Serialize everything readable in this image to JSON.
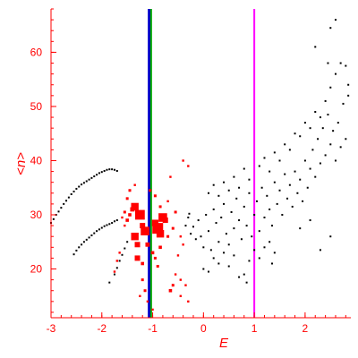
{
  "chart_data": {
    "type": "scatter",
    "title": "",
    "xlabel": "E",
    "ylabel": "<n>",
    "xlim": [
      -3,
      2.9
    ],
    "ylim": [
      11,
      68
    ],
    "x_ticks": [
      "-3",
      "-2",
      "-1",
      "0",
      "1",
      "2"
    ],
    "y_ticks": [
      "20",
      "30",
      "40",
      "50",
      "60"
    ],
    "grid": false,
    "legend": "none",
    "colors": {
      "axes": "#ff0000",
      "black_points": "#000000",
      "red_points": "#ff0000",
      "vline_blue": "#0000cc",
      "vline_green": "#00aa00",
      "vline_magenta": "#ff00ff"
    },
    "vertical_lines": [
      {
        "x": -1.06,
        "color": "#0000cc"
      },
      {
        "x": -1.03,
        "color": "#00aa00"
      },
      {
        "x": 1.0,
        "color": "#ff00ff"
      }
    ],
    "series": [
      {
        "marker": "small-dot",
        "color": "#000000",
        "points": [
          [
            -3.0,
            28.5
          ],
          [
            -2.95,
            29.2
          ],
          [
            -2.9,
            30.0
          ],
          [
            -2.85,
            30.6
          ],
          [
            -2.8,
            31.3
          ],
          [
            -2.75,
            32.0
          ],
          [
            -2.7,
            32.6
          ],
          [
            -2.65,
            33.2
          ],
          [
            -2.6,
            33.8
          ],
          [
            -2.55,
            34.3
          ],
          [
            -2.5,
            34.8
          ],
          [
            -2.45,
            35.2
          ],
          [
            -2.4,
            35.6
          ],
          [
            -2.35,
            35.9
          ],
          [
            -2.3,
            36.2
          ],
          [
            -2.25,
            36.5
          ],
          [
            -2.2,
            36.8
          ],
          [
            -2.15,
            37.1
          ],
          [
            -2.1,
            37.4
          ],
          [
            -2.05,
            37.7
          ],
          [
            -2.0,
            37.9
          ],
          [
            -1.95,
            38.1
          ],
          [
            -1.9,
            38.3
          ],
          [
            -1.85,
            38.4
          ],
          [
            -1.8,
            38.4
          ],
          [
            -1.75,
            38.3
          ],
          [
            -1.7,
            38.1
          ],
          [
            -2.55,
            22.7
          ],
          [
            -2.5,
            23.4
          ],
          [
            -2.45,
            24.0
          ],
          [
            -2.4,
            24.5
          ],
          [
            -2.35,
            25.0
          ],
          [
            -2.3,
            25.4
          ],
          [
            -2.25,
            25.8
          ],
          [
            -2.2,
            26.2
          ],
          [
            -2.15,
            26.6
          ],
          [
            -2.1,
            27.0
          ],
          [
            -2.05,
            27.3
          ],
          [
            -2.0,
            27.6
          ],
          [
            -1.95,
            27.9
          ],
          [
            -1.9,
            28.1
          ],
          [
            -1.85,
            28.3
          ],
          [
            -1.8,
            28.5
          ],
          [
            -1.75,
            28.8
          ],
          [
            -1.7,
            29.0
          ],
          [
            -1.85,
            17.5
          ],
          [
            -1.75,
            19.0
          ],
          [
            -1.7,
            20.2
          ],
          [
            -1.65,
            21.5
          ],
          [
            -1.6,
            22.6
          ],
          [
            -1.55,
            23.8
          ],
          [
            -1.5,
            25.0
          ],
          [
            -0.35,
            28.0
          ],
          [
            -0.3,
            29.5
          ],
          [
            -0.28,
            30.2
          ],
          [
            -0.25,
            26.5
          ],
          [
            -0.2,
            27.8
          ],
          [
            -0.15,
            25.5
          ],
          [
            -0.1,
            29.0
          ],
          [
            -0.05,
            26.0
          ],
          [
            0.0,
            24.0
          ],
          [
            0.05,
            30.0
          ],
          [
            0.1,
            27.0
          ],
          [
            0.15,
            23.5
          ],
          [
            0.2,
            31.0
          ],
          [
            0.25,
            28.5
          ],
          [
            0.3,
            25.0
          ],
          [
            0.35,
            29.5
          ],
          [
            0.4,
            32.0
          ],
          [
            0.45,
            26.5
          ],
          [
            0.5,
            24.5
          ],
          [
            0.55,
            30.5
          ],
          [
            0.6,
            27.5
          ],
          [
            0.65,
            33.0
          ],
          [
            0.7,
            29.0
          ],
          [
            0.75,
            25.5
          ],
          [
            0.8,
            31.5
          ],
          [
            0.85,
            28.0
          ],
          [
            0.9,
            34.0
          ],
          [
            0.95,
            26.0
          ],
          [
            1.0,
            30.0
          ],
          [
            1.05,
            32.5
          ],
          [
            1.1,
            27.0
          ],
          [
            1.15,
            35.0
          ],
          [
            1.2,
            29.5
          ],
          [
            1.25,
            33.5
          ],
          [
            1.3,
            31.0
          ],
          [
            1.35,
            28.0
          ],
          [
            1.4,
            36.0
          ],
          [
            1.45,
            32.0
          ],
          [
            1.5,
            34.5
          ],
          [
            1.55,
            30.0
          ],
          [
            1.6,
            37.5
          ],
          [
            1.65,
            33.0
          ],
          [
            1.7,
            35.5
          ],
          [
            1.75,
            31.5
          ],
          [
            1.8,
            38.0
          ],
          [
            1.85,
            34.0
          ],
          [
            1.9,
            36.5
          ],
          [
            1.95,
            32.5
          ],
          [
            2.0,
            40.0
          ],
          [
            2.05,
            35.0
          ],
          [
            2.1,
            38.5
          ],
          [
            2.15,
            42.0
          ],
          [
            2.2,
            37.0
          ],
          [
            2.25,
            44.0
          ],
          [
            2.3,
            39.5
          ],
          [
            2.35,
            46.0
          ],
          [
            2.4,
            41.0
          ],
          [
            2.45,
            48.5
          ],
          [
            2.5,
            43.0
          ],
          [
            2.55,
            45.5
          ],
          [
            2.6,
            40.0
          ],
          [
            2.65,
            47.0
          ],
          [
            2.7,
            42.5
          ],
          [
            2.75,
            50.5
          ],
          [
            2.8,
            44.0
          ],
          [
            2.85,
            52.0
          ],
          [
            0.0,
            20.0
          ],
          [
            0.1,
            19.5
          ],
          [
            0.2,
            22.0
          ],
          [
            0.3,
            21.0
          ],
          [
            0.4,
            23.0
          ],
          [
            0.5,
            20.5
          ],
          [
            0.6,
            22.5
          ],
          [
            0.7,
            18.5
          ],
          [
            0.8,
            19.0
          ],
          [
            0.9,
            21.5
          ],
          [
            1.0,
            23.5
          ],
          [
            1.1,
            22.0
          ],
          [
            1.2,
            24.0
          ],
          [
            1.3,
            25.0
          ],
          [
            1.4,
            23.0
          ],
          [
            0.1,
            34.0
          ],
          [
            0.2,
            35.5
          ],
          [
            0.3,
            33.5
          ],
          [
            0.4,
            36.0
          ],
          [
            0.5,
            34.5
          ],
          [
            0.6,
            37.0
          ],
          [
            0.7,
            35.0
          ],
          [
            0.8,
            38.5
          ],
          [
            0.9,
            36.5
          ],
          [
            1.1,
            39.0
          ],
          [
            1.2,
            40.5
          ],
          [
            1.3,
            38.0
          ],
          [
            1.4,
            41.5
          ],
          [
            1.5,
            40.0
          ],
          [
            1.6,
            43.0
          ],
          [
            1.7,
            42.0
          ],
          [
            1.8,
            45.0
          ],
          [
            1.9,
            44.5
          ],
          [
            2.0,
            47.0
          ],
          [
            2.1,
            46.0
          ],
          [
            2.2,
            49.0
          ],
          [
            2.3,
            48.0
          ],
          [
            2.4,
            51.0
          ],
          [
            2.5,
            53.5
          ],
          [
            2.6,
            56.0
          ],
          [
            2.7,
            58.0
          ],
          [
            2.8,
            57.5
          ],
          [
            2.85,
            54.0
          ],
          [
            2.5,
            64.5
          ],
          [
            2.6,
            66.0
          ],
          [
            2.45,
            58.0
          ],
          [
            2.2,
            61.0
          ],
          [
            2.3,
            23.5
          ],
          [
            2.5,
            26.0
          ],
          [
            0.85,
            17.5
          ],
          [
            1.35,
            21.0
          ],
          [
            1.9,
            27.5
          ],
          [
            2.1,
            29.0
          ]
        ]
      },
      {
        "marker": "red-square",
        "color": "#ff0000",
        "points": [
          [
            -1.35,
            31.5,
            14
          ],
          [
            -1.25,
            30.0,
            18
          ],
          [
            -1.2,
            28.0,
            10
          ],
          [
            -1.15,
            27.0,
            16
          ],
          [
            -0.95,
            28.5,
            12
          ],
          [
            -0.9,
            27.5,
            20
          ],
          [
            -0.85,
            26.5,
            14
          ],
          [
            -0.8,
            29.5,
            16
          ],
          [
            -0.75,
            29.0,
            10
          ],
          [
            -1.4,
            31.0,
            8
          ],
          [
            -1.45,
            30.0,
            6
          ],
          [
            -1.5,
            29.0,
            6
          ],
          [
            -1.55,
            30.5,
            5
          ],
          [
            -1.6,
            29.5,
            4
          ],
          [
            -1.5,
            33.0,
            5
          ],
          [
            -1.45,
            34.5,
            5
          ],
          [
            -1.35,
            35.5,
            4
          ],
          [
            -1.3,
            24.5,
            10
          ],
          [
            -1.35,
            26.0,
            14
          ],
          [
            -1.3,
            22.0,
            10
          ],
          [
            -1.2,
            21.0,
            6
          ],
          [
            -1.1,
            24.5,
            8
          ],
          [
            -1.0,
            23.0,
            6
          ],
          [
            -0.95,
            22.0,
            5
          ],
          [
            -0.9,
            20.5,
            5
          ],
          [
            -0.85,
            24.0,
            6
          ],
          [
            -0.7,
            26.0,
            5
          ],
          [
            -0.6,
            27.5,
            5
          ],
          [
            -0.55,
            30.5,
            5
          ],
          [
            -0.45,
            26.0,
            4
          ],
          [
            -0.4,
            24.5,
            4
          ],
          [
            -0.5,
            22.5,
            4
          ],
          [
            -0.55,
            19.0,
            4
          ],
          [
            -0.6,
            17.0,
            5
          ],
          [
            -0.65,
            16.0,
            6
          ],
          [
            -0.45,
            18.0,
            4
          ],
          [
            -0.35,
            17.0,
            4
          ],
          [
            -0.45,
            15.0,
            4
          ],
          [
            -0.3,
            14.0,
            4
          ],
          [
            -1.05,
            34.5,
            5
          ],
          [
            -0.95,
            33.5,
            5
          ],
          [
            -0.85,
            31.5,
            5
          ],
          [
            -0.7,
            32.5,
            4
          ],
          [
            -0.65,
            37.0,
            4
          ],
          [
            -0.4,
            40.0,
            4
          ],
          [
            -0.3,
            39.0,
            4
          ],
          [
            -1.2,
            18.0,
            5
          ],
          [
            -1.15,
            16.0,
            5
          ],
          [
            -1.25,
            15.0,
            4
          ],
          [
            -1.1,
            14.0,
            4
          ],
          [
            -1.0,
            12.5,
            4
          ],
          [
            -1.65,
            23.0,
            4
          ],
          [
            -1.7,
            21.5,
            4
          ],
          [
            -1.75,
            19.5,
            4
          ],
          [
            -1.55,
            28.0,
            4
          ]
        ]
      }
    ]
  }
}
